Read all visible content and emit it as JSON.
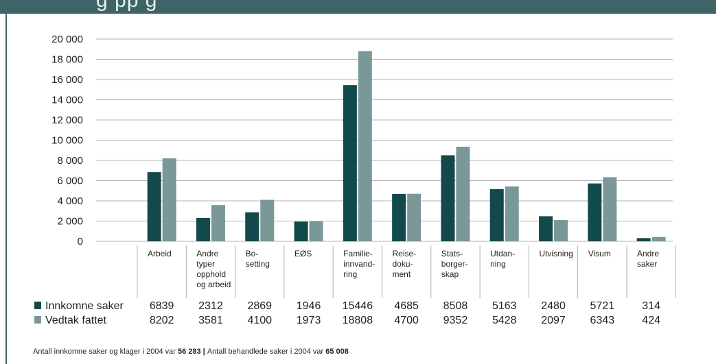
{
  "header": {
    "title_fragment": "g                        pp                                                                                                 g"
  },
  "chart_data": {
    "type": "bar",
    "categories": [
      [
        "Arbeid"
      ],
      [
        "Andre",
        "typer",
        "opphold",
        "og arbeid"
      ],
      [
        "Bo-",
        "setting"
      ],
      [
        "EØS"
      ],
      [
        "Familie-",
        "innvand-",
        "ring"
      ],
      [
        "Reise-",
        "doku-",
        "ment"
      ],
      [
        "Stats-",
        "borger-",
        "skap"
      ],
      [
        "Utdan-",
        "ning"
      ],
      [
        "Utvisning"
      ],
      [
        "Visum"
      ],
      [
        "Andre",
        "saker"
      ]
    ],
    "series": [
      {
        "name": "Innkomne saker",
        "color": "#12494b",
        "values": [
          6839,
          2312,
          2869,
          1946,
          15446,
          4685,
          8508,
          5163,
          2480,
          5721,
          314
        ],
        "labels": [
          "6839",
          "2312",
          "2869",
          "1946",
          "15446",
          "4685",
          "8508",
          "5163",
          "2480",
          "5721",
          "314"
        ]
      },
      {
        "name": "Vedtak fattet",
        "color": "#7a9898",
        "values": [
          8202,
          3581,
          4100,
          1973,
          18808,
          4700,
          9352,
          5428,
          2097,
          6343,
          424
        ],
        "labels": [
          "8202",
          "3581",
          "4100",
          "1973",
          "18808",
          "4700",
          "9352",
          "5428",
          "2097",
          "6343",
          "424"
        ]
      }
    ],
    "yticks": [
      0,
      2000,
      4000,
      6000,
      8000,
      10000,
      12000,
      14000,
      16000,
      18000,
      20000
    ],
    "ytick_labels": [
      "0",
      "2 000",
      "4 000",
      "6 000",
      "8 000",
      "10 000",
      "12 000",
      "14 000",
      "16 000",
      "18 000",
      "20 000"
    ],
    "ylim": [
      0,
      20000
    ],
    "grid": true,
    "legend": "bottom-left table"
  },
  "footer": {
    "text1": "Antall innkomne saker og klager i 2004 var ",
    "value1": "56 283",
    "separator": "  |  ",
    "text2": "Antall behandlede saker i 2004 var ",
    "value2": "65 008"
  }
}
